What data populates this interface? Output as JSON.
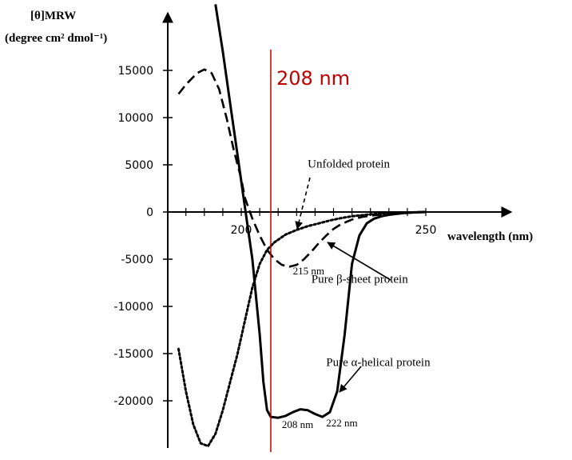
{
  "chart_data": {
    "type": "line",
    "ylabel_line1": "[θ]MRW",
    "ylabel_line2": "(degree cm² dmol⁻¹)",
    "xlabel": "wavelength (nm)",
    "x_ticks": [
      200,
      250
    ],
    "y_ticks": [
      15000,
      10000,
      5000,
      0,
      -5000,
      -10000,
      -15000,
      -20000
    ],
    "xlim": [
      180,
      250
    ],
    "ylim": [
      -25000,
      20000
    ],
    "marker": {
      "x": 208,
      "label": "208 nm",
      "color": "#c00000"
    },
    "series": [
      {
        "name": "Pure α-helical protein",
        "style": "solid",
        "x": [
          193,
          195,
          197,
          199,
          201,
          203,
          205,
          206,
          207,
          208,
          210,
          212,
          214,
          216,
          218,
          220,
          222,
          224,
          226,
          228,
          230,
          232,
          234,
          236,
          238,
          240,
          242,
          244,
          246,
          248,
          250
        ],
        "y": [
          22000,
          17000,
          11500,
          6000,
          500,
          -5000,
          -13000,
          -18000,
          -21000,
          -21700,
          -21800,
          -21600,
          -21200,
          -20900,
          -21000,
          -21400,
          -21700,
          -21200,
          -19000,
          -13000,
          -5500,
          -2500,
          -1200,
          -700,
          -450,
          -300,
          -200,
          -120,
          -60,
          -20,
          0
        ]
      },
      {
        "name": "Pure β-sheet protein",
        "style": "dashed",
        "x": [
          183,
          185,
          188,
          190,
          192,
          194,
          196,
          198,
          200,
          201,
          203,
          205,
          207,
          209,
          211,
          213,
          215,
          217,
          219,
          221,
          223,
          225,
          227,
          230,
          233,
          236,
          240,
          244,
          248,
          250
        ],
        "y": [
          12500,
          13500,
          14700,
          15100,
          14700,
          13000,
          10000,
          6500,
          3500,
          1500,
          -700,
          -2500,
          -4000,
          -5000,
          -5600,
          -5800,
          -5600,
          -5000,
          -4200,
          -3300,
          -2500,
          -1800,
          -1300,
          -800,
          -500,
          -350,
          -200,
          -100,
          -30,
          0
        ]
      },
      {
        "name": "Unfolded protein",
        "style": "dotted",
        "x": [
          183,
          185,
          187,
          189,
          191,
          193,
          195,
          197,
          199,
          201,
          203,
          205,
          207,
          209,
          212,
          215,
          218,
          221,
          224,
          227,
          230,
          235,
          240,
          245,
          250
        ],
        "y": [
          -14500,
          -19000,
          -22500,
          -24500,
          -24800,
          -23500,
          -21000,
          -18000,
          -15000,
          -11500,
          -8000,
          -5500,
          -4000,
          -3200,
          -2400,
          -1900,
          -1500,
          -1200,
          -900,
          -650,
          -450,
          -250,
          -120,
          -50,
          0
        ]
      }
    ],
    "annotations": [
      {
        "text": "Unfolded protein",
        "x": 218,
        "y": 4700
      },
      {
        "text": "Pure β-sheet protein",
        "x": 219,
        "y": -7500
      },
      {
        "text": "Pure α-helical protein",
        "x": 223,
        "y": -16300
      },
      {
        "text": "215 nm",
        "x": 214,
        "y": -6600
      },
      {
        "text": "208 nm",
        "x": 211,
        "y": -22900
      },
      {
        "text": "222 nm",
        "x": 223,
        "y": -22700
      }
    ]
  }
}
